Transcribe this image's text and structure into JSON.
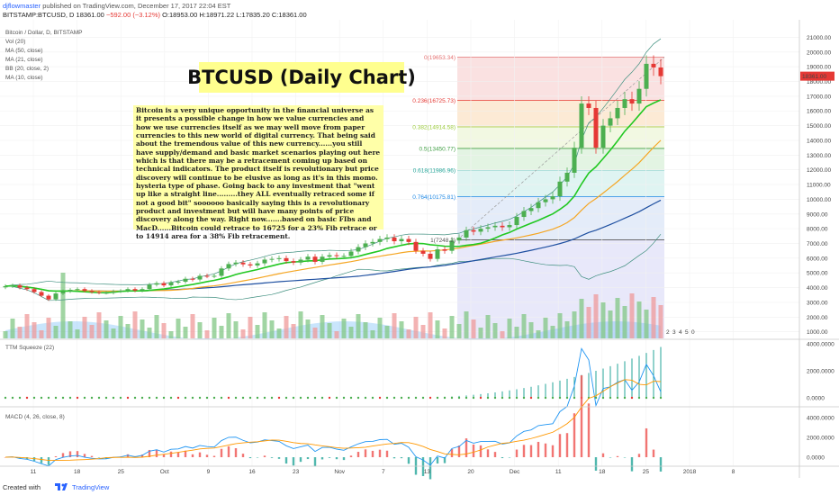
{
  "header": {
    "author": "djflowmaster",
    "published": "published on TradingView.com, December 17, 2017 22:04 EST",
    "symbol_line_prefix": "BITSTAMP:BTCUSD, D",
    "symbol_last": "18361.00",
    "symbol_change": "−592.00 (−3.12%)",
    "symbol_ohlc": "O:18953.00 H:18971.22 L:17835.20 C:18361.00"
  },
  "indicators": {
    "main_title": "Bitcoin / Dollar, D, BITSTAMP",
    "vol": "Vol (20)",
    "ma50": "MA (50, close)",
    "ma21": "MA (21, close)",
    "bb": "BB (20, close, 2)",
    "ma10": "MA (10, close)",
    "ttm": "TTM Squeeze (22)",
    "macd": "MACD (4, 26, close, 8)"
  },
  "annotations": {
    "title": "BTCUSD (Daily Chart)",
    "note": "Bitcoin is a very unique opportunity in the financial universe as it presents a possible change in how we value currencies and how we use currencies itself as we may well move from paper currencies to this new world of digital currency. That being said about the tremendous value of this new currency......you still have supply/demand and basic market scenarios playing out here which is that there may be a retracement coming up based on technical indicators. The product itself is revolutionary but price discovery will continue to be elusive as long as it's in this momo. hysteria type of phase. Going back to any investment that \"went up like a straight line.........they ALL eventually retraced some if not a good bit\" soooooo basically saying this is a revolutionary product and investment but will have many points of price discovery along the way. Right now.......based on basic FIbs and MacD......Bitcoin could retrace to 16725 for a 23% Fib retrace or to 14914 area for a 38% Fib retracement."
  },
  "footer": {
    "created": "Created with",
    "brand": "TradingView"
  },
  "colors": {
    "ma10": "#22c822",
    "ma21": "#f5a623",
    "ma50": "#1e4fa0",
    "bb": "#3f8f7f",
    "up": "#4caf50",
    "down": "#e53935",
    "volume": "#64b5f6",
    "note_bg": "#ffffa8",
    "title_bg": "#ffff8f"
  },
  "chart_data": {
    "type": "candlestick",
    "symbol": "BITSTAMP:BTCUSD",
    "interval": "D",
    "price_axis": {
      "ticks": [
        "21000.00",
        "20000.00",
        "19000.00",
        "18000.00",
        "17000.00",
        "16000.00",
        "15000.00",
        "14000.00",
        "13000.00",
        "12000.00",
        "11000.00",
        "10000.00",
        "9000.00",
        "8000.00",
        "7000.00",
        "6000.00",
        "5000.00",
        "4000.00",
        "3000.00",
        "2000.00",
        "1000.00"
      ],
      "last_price_label": "18361.00",
      "price_min": 0,
      "price_max": 21700
    },
    "x_ticks": [
      "11",
      "18",
      "25",
      "Oct",
      "9",
      "16",
      "23",
      "Nov",
      "7",
      "13",
      "20",
      "Dec",
      "11",
      "18",
      "25",
      "2018",
      "8"
    ],
    "fib_levels": [
      {
        "ratio": "0",
        "price": "19653.34",
        "value": 19653.34,
        "color": "#e57373"
      },
      {
        "ratio": "0.236",
        "price": "16725.73",
        "value": 16725.73,
        "color": "#e53935"
      },
      {
        "ratio": "0.382",
        "price": "14914.58",
        "value": 14914.58,
        "color": "#9ccc3c"
      },
      {
        "ratio": "0.5",
        "price": "13450.77",
        "value": 13450.77,
        "color": "#43a047"
      },
      {
        "ratio": "0.618",
        "price": "11986.96",
        "value": 11986.96,
        "color": "#26a69a"
      },
      {
        "ratio": "0.764",
        "price": "10175.81",
        "value": 10175.81,
        "color": "#1e88e5"
      },
      {
        "ratio": "1",
        "price": "7248.2",
        "value": 7248.2,
        "color": "#555555"
      }
    ],
    "fib_labels": [
      "0(19653.34)",
      "0.236(16725.73)",
      "0.382(14914.58)",
      "0.5(13450.77)",
      "0.618(11986.96)",
      "0.764(10175.81)",
      "1(7248.2)"
    ],
    "closes": [
      4100,
      4150,
      4000,
      3900,
      3700,
      3450,
      3200,
      3600,
      3750,
      3850,
      3900,
      3780,
      3700,
      3650,
      3650,
      3750,
      3780,
      3900,
      3800,
      3900,
      4200,
      4300,
      4150,
      4350,
      4400,
      4600,
      4550,
      4800,
      4780,
      4800,
      5300,
      5600,
      5700,
      5580,
      5500,
      5650,
      5900,
      5950,
      6000,
      5800,
      5700,
      5900,
      6100,
      5750,
      6100,
      6200,
      6150,
      6150,
      6450,
      6750,
      7000,
      7100,
      7300,
      7400,
      7150,
      7300,
      7100,
      6500,
      6300,
      5950,
      6600,
      6500,
      7200,
      7400,
      7900,
      7800,
      8000,
      8100,
      8200,
      8100,
      8250,
      8800,
      9200,
      9400,
      9800,
      10000,
      10200,
      11200,
      11800,
      13500,
      16500,
      16200,
      13500,
      15000,
      15500,
      16200,
      16800,
      16500,
      17500,
      19200,
      18953,
      18361
    ],
    "ttm_scale_ticks": [
      "4000.0000",
      "2000.0000",
      "0.0000"
    ],
    "macd_scale_ticks": [
      "4000.0000",
      "2000.0000",
      "0.0000"
    ],
    "volume_badges": [
      "2",
      "3",
      "4",
      "5",
      "0"
    ]
  }
}
